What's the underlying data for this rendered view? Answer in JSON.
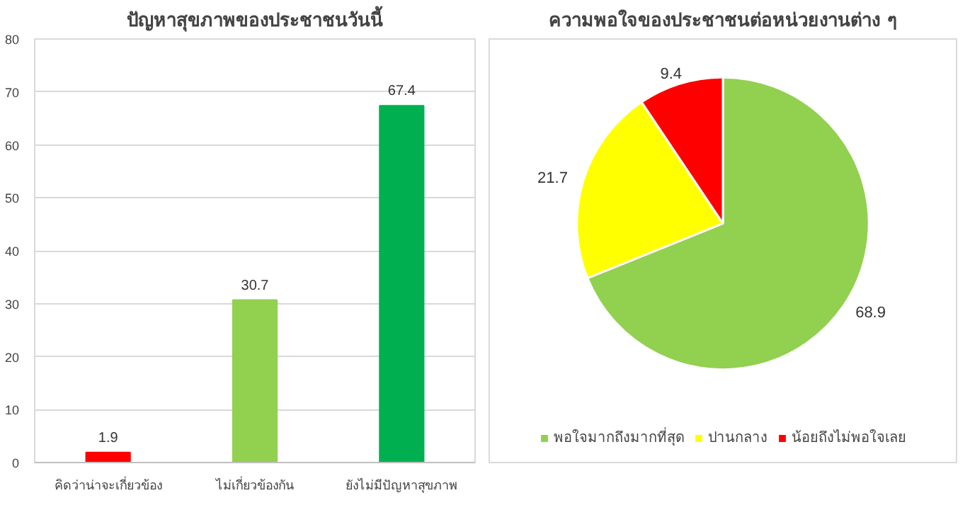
{
  "chart_data": [
    {
      "type": "bar",
      "title": "ปัญหาสุขภาพของประชาชนวันนี้",
      "categories": [
        "คิดว่าน่าจะเกี่ยวข้อง",
        "ไม่เกี่ยวข้องกัน",
        "ยังไม่มีปัญหาสุขภาพ"
      ],
      "values": [
        1.9,
        30.7,
        67.4
      ],
      "colors": [
        "#ff0000",
        "#92d050",
        "#00b050"
      ],
      "ylim": [
        0,
        80
      ],
      "yticks": [
        0,
        10,
        20,
        30,
        40,
        50,
        60,
        70,
        80
      ],
      "grid": "y",
      "data_labels": true
    },
    {
      "type": "pie",
      "title": "ความพอใจของประชาชนต่อหน่วยงานต่าง ๆ",
      "categories": [
        "พอใจมากถึงมากที่สุด",
        "ปานกลาง",
        "น้อยถึงไม่พอใจเลย"
      ],
      "values": [
        68.9,
        21.7,
        9.4
      ],
      "colors": [
        "#92d050",
        "#ffff00",
        "#ff0000"
      ],
      "data_labels": true,
      "legend": "bottom"
    }
  ]
}
